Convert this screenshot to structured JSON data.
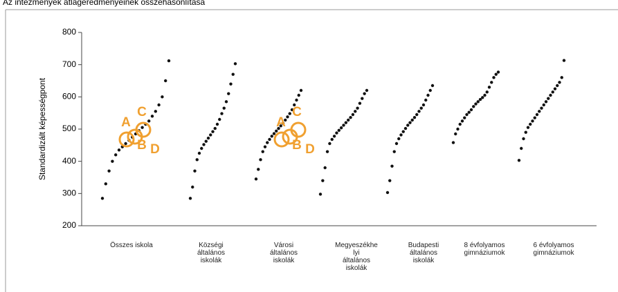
{
  "chart_data": {
    "type": "strip",
    "title": "Az intézmények átlageredményeinek összehasonlítása",
    "y_label": "Standardizált képességpont",
    "categories": [
      "Összes iskola",
      "Községi\náltalános\niskolák",
      "Városi\náltalános\niskolák",
      "Megyeszékhe\nlyi\náltalános\niskolák",
      "Budapesti\náltalános\niskolák",
      "8 évfolyamos\ngimnáziumok",
      "6 évfolyamos\ngimnáziumok"
    ],
    "series": [
      {
        "color": "#111111",
        "values": [
          285,
          330,
          370,
          400,
          420,
          435,
          445,
          455,
          465,
          475,
          485,
          495,
          505,
          515,
          525,
          540,
          555,
          575,
          600,
          650,
          712
        ]
      },
      {
        "color": "#111111",
        "values": [
          285,
          320,
          370,
          405,
          425,
          440,
          452,
          462,
          472,
          482,
          492,
          502,
          515,
          530,
          548,
          565,
          585,
          610,
          640,
          670,
          703
        ]
      },
      {
        "color": "#111111",
        "values": [
          345,
          375,
          405,
          430,
          445,
          458,
          468,
          478,
          486,
          494,
          502,
          510,
          518,
          528,
          538,
          548,
          560,
          575,
          590,
          605,
          620
        ]
      },
      {
        "color": "#111111",
        "values": [
          298,
          340,
          380,
          430,
          455,
          468,
          478,
          488,
          496,
          504,
          512,
          520,
          528,
          536,
          545,
          555,
          565,
          580,
          595,
          610,
          620
        ]
      },
      {
        "color": "#111111",
        "values": [
          303,
          340,
          385,
          430,
          455,
          470,
          482,
          492,
          502,
          512,
          520,
          528,
          536,
          545,
          555,
          565,
          575,
          590,
          605,
          620,
          635
        ]
      },
      {
        "color": "#111111",
        "values": [
          458,
          485,
          500,
          515,
          525,
          535,
          545,
          552,
          560,
          570,
          578,
          585,
          592,
          598,
          605,
          615,
          630,
          645,
          660,
          670,
          677
        ]
      },
      {
        "color": "#111111",
        "values": [
          403,
          440,
          470,
          490,
          505,
          515,
          525,
          535,
          545,
          555,
          565,
          575,
          585,
          595,
          605,
          615,
          625,
          635,
          645,
          660,
          713
        ]
      }
    ],
    "annotations": [
      "A",
      "B",
      "C",
      "D"
    ],
    "annotation_color": "#f0a030",
    "ylim": [
      200,
      800
    ],
    "yticks": [
      200,
      300,
      400,
      500,
      600,
      700,
      800
    ]
  }
}
